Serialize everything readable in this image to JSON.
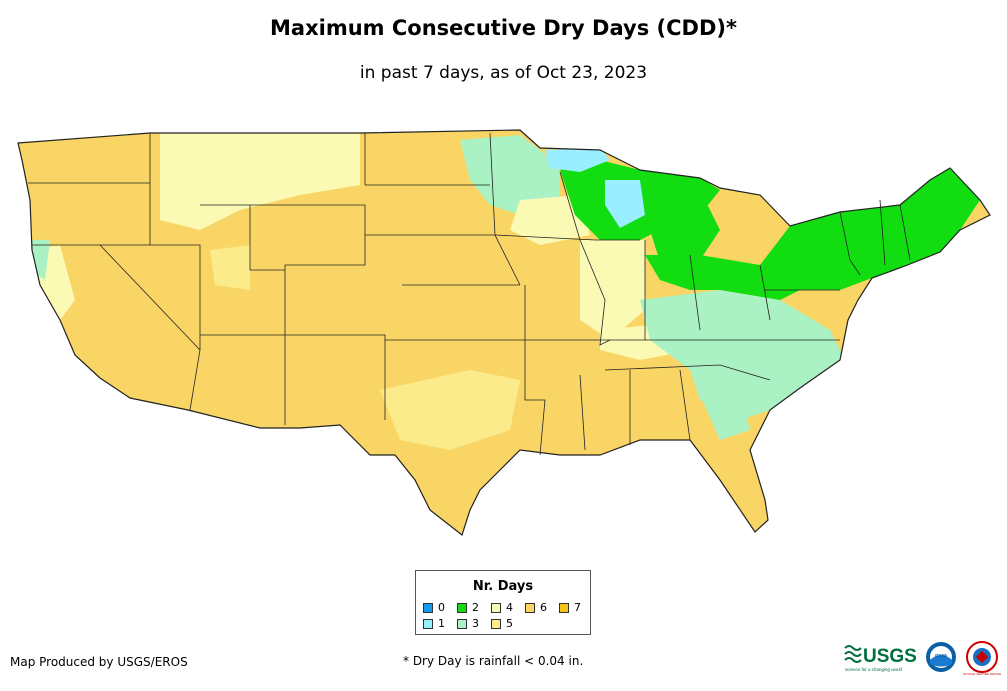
{
  "title": "Maximum Consecutive Dry Days (CDD)*",
  "subtitle": "in past 7 days, as of Oct 23, 2023",
  "legend": {
    "title": "Nr. Days",
    "items": [
      {
        "label": "0",
        "color": "#1199ee"
      },
      {
        "label": "1",
        "color": "#99eeff"
      },
      {
        "label": "2",
        "color": "#11dd11"
      },
      {
        "label": "3",
        "color": "#aaf2c4"
      },
      {
        "label": "4",
        "color": "#fafab4"
      },
      {
        "label": "5",
        "color": "#fbeb8b"
      },
      {
        "label": "6",
        "color": "#f9d565"
      },
      {
        "label": "7",
        "color": "#f6c11a"
      }
    ]
  },
  "credit": "Map Produced by USGS/EROS",
  "footnote": "* Dry Day is rainfall < 0.04 in.",
  "logos": {
    "usgs": "USGS",
    "usgs_tagline": "science for a changing world",
    "noaa": "noaa",
    "nws": "NATIONAL WEATHER SERVICE"
  }
}
